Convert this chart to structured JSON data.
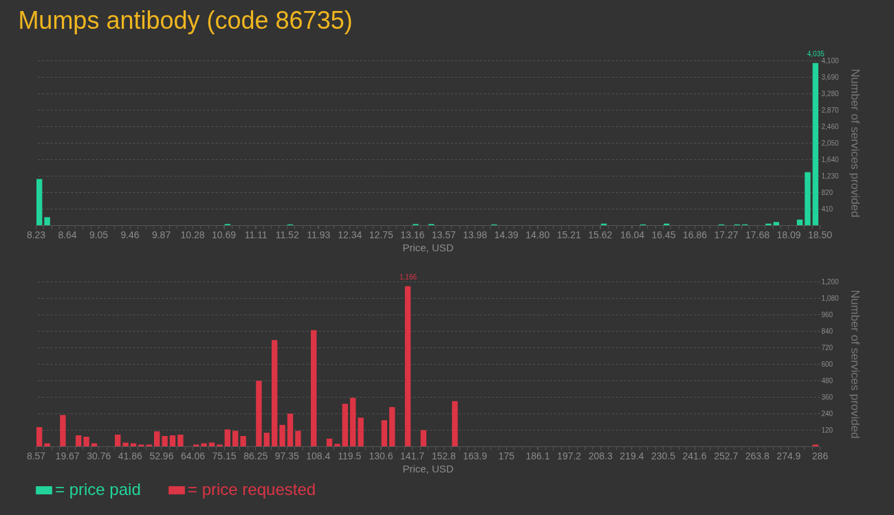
{
  "chart_data": [
    {
      "type": "histogram",
      "title": "Mumps antibody (code 86735)",
      "xlabel": "Price, USD",
      "ylabel": "Number of services provided",
      "legend": "bottom",
      "grid": "y",
      "bins": [
        8.23,
        8.3327,
        8.4354,
        8.5381,
        8.6408,
        8.7435,
        8.8462,
        8.9489,
        9.0516,
        9.1543,
        9.257,
        9.3597,
        9.4624,
        9.5651,
        9.6678,
        9.7705,
        9.8732,
        9.9759,
        10.0786,
        10.1813,
        10.284,
        10.3867,
        10.4894,
        10.5921,
        10.6948,
        10.7975,
        10.9002,
        11.0029,
        11.1056,
        11.2083,
        11.311,
        11.4137,
        11.5164,
        11.6191,
        11.7218,
        11.8245,
        11.9272,
        12.0299,
        12.1326,
        12.2353,
        12.338,
        12.4407,
        12.5434,
        12.6461,
        12.7488,
        12.8515,
        12.9542,
        13.0569,
        13.1596,
        13.2623,
        13.365,
        13.4677,
        13.5704,
        13.6731,
        13.7758,
        13.8785,
        13.9812,
        14.0839,
        14.1866,
        14.2893,
        14.392,
        14.4947,
        14.5974,
        14.7001,
        14.8028,
        14.9055,
        15.0082,
        15.1109,
        15.2136,
        15.3163,
        15.419,
        15.5217,
        15.6244,
        15.7271,
        15.8298,
        15.9325,
        16.0352,
        16.1379,
        16.2406,
        16.3433,
        16.446,
        16.5487,
        16.6514,
        16.7541,
        16.8568,
        16.9595,
        17.0622,
        17.1649,
        17.2676,
        17.3703,
        17.473,
        17.5757,
        17.6784,
        17.7811,
        17.8838,
        17.9865,
        18.0892,
        18.1919,
        18.2946,
        18.3973,
        18.5
      ],
      "xlim": [
        8.23,
        18.5
      ],
      "xticks": [
        8.23,
        8.64,
        9.05,
        9.46,
        9.87,
        10.28,
        10.69,
        11.11,
        11.52,
        11.93,
        12.34,
        12.75,
        13.16,
        13.57,
        13.98,
        14.39,
        {
          "value": 14.8,
          "label": "14.80"
        },
        15.21,
        15.62,
        16.04,
        16.45,
        16.86,
        17.27,
        17.68,
        18.09,
        {
          "value": 18.5,
          "label": "18.50"
        }
      ],
      "ylim": [
        0,
        4100
      ],
      "yticks": [
        {
          "value": 410,
          "label": "410"
        },
        {
          "value": 820,
          "label": "820"
        },
        {
          "value": 1230,
          "label": "1,230"
        },
        {
          "value": 1640,
          "label": "1,640"
        },
        {
          "value": 2050,
          "label": "2,050"
        },
        {
          "value": 2460,
          "label": "2,460"
        },
        {
          "value": 2870,
          "label": "2,870"
        },
        {
          "value": 3280,
          "label": "3,280"
        },
        {
          "value": 3690,
          "label": "3,690"
        },
        {
          "value": 4100,
          "label": "4,100"
        }
      ],
      "series": [
        {
          "name": "= price paid",
          "color": "#22d49b",
          "values": [
            1150,
            200,
            0,
            0,
            0,
            0,
            0,
            0,
            0,
            0,
            0,
            0,
            0,
            0,
            0,
            0,
            0,
            0,
            0,
            0,
            0,
            0,
            0,
            0,
            30,
            0,
            0,
            0,
            0,
            0,
            0,
            0,
            20,
            0,
            0,
            0,
            0,
            0,
            0,
            0,
            0,
            0,
            0,
            0,
            0,
            0,
            0,
            0,
            30,
            0,
            30,
            0,
            0,
            0,
            0,
            0,
            0,
            0,
            20,
            0,
            0,
            0,
            0,
            0,
            0,
            0,
            0,
            0,
            0,
            0,
            0,
            0,
            40,
            0,
            0,
            0,
            0,
            20,
            0,
            0,
            40,
            0,
            0,
            0,
            0,
            0,
            0,
            20,
            0,
            20,
            20,
            0,
            0,
            40,
            80,
            0,
            0,
            140,
            1320,
            4035
          ],
          "value_labels": [
            null,
            null,
            null,
            null,
            null,
            null,
            null,
            null,
            null,
            null,
            null,
            null,
            null,
            null,
            null,
            null,
            null,
            null,
            null,
            null,
            null,
            null,
            null,
            null,
            null,
            null,
            null,
            null,
            null,
            null,
            null,
            null,
            null,
            null,
            null,
            null,
            null,
            null,
            null,
            null,
            null,
            null,
            null,
            null,
            null,
            null,
            null,
            null,
            null,
            null,
            null,
            null,
            null,
            null,
            null,
            null,
            null,
            null,
            null,
            null,
            null,
            null,
            null,
            null,
            null,
            null,
            null,
            null,
            null,
            null,
            null,
            null,
            null,
            null,
            null,
            null,
            null,
            null,
            null,
            null,
            null,
            null,
            null,
            null,
            null,
            null,
            null,
            null,
            null,
            null,
            null,
            null,
            null,
            null,
            null,
            null,
            null,
            null,
            null,
            "4,035"
          ]
        }
      ]
    },
    {
      "type": "histogram",
      "xlabel": "Price, USD",
      "ylabel": "Number of services provided",
      "legend": "bottom",
      "grid": "y",
      "bins": [
        8.57,
        11.3443,
        14.1186,
        16.8929,
        19.6672,
        22.4415,
        25.2158,
        27.9901,
        30.7644,
        33.5387,
        36.313,
        39.0873,
        41.8616,
        44.6359,
        47.4102,
        50.1845,
        52.9588,
        55.7331,
        58.5074,
        61.2817,
        64.056,
        66.8303,
        69.6046,
        72.3789,
        75.1532,
        77.9275,
        80.7018,
        83.4761,
        86.2504,
        89.0247,
        91.799,
        94.5733,
        97.3476,
        100.1219,
        102.8962,
        105.6705,
        108.4448,
        111.2191,
        113.9934,
        116.7677,
        119.542,
        122.3163,
        125.0906,
        127.8649,
        130.6392,
        133.4135,
        136.1878,
        138.9621,
        141.7364,
        144.5107,
        147.285,
        150.0593,
        152.8336,
        155.6079,
        158.3822,
        161.1565,
        163.9308,
        166.7051,
        169.4794,
        172.2537,
        175.028,
        177.8023,
        180.5766,
        183.3509,
        186.1252,
        188.8995,
        191.6738,
        194.4481,
        197.2224,
        199.9967,
        202.771,
        205.5453,
        208.3196,
        211.0939,
        213.8682,
        216.6425,
        219.4168,
        222.1911,
        224.9654,
        227.7397,
        230.514,
        233.2883,
        236.0626,
        238.8369,
        241.6112,
        244.3855,
        247.1598,
        249.9341,
        252.7084,
        255.4827,
        258.257,
        261.0313,
        263.8056,
        266.5799,
        269.3542,
        272.1285,
        274.9028,
        277.6771,
        280.4514,
        283.2257,
        286
      ],
      "xlim": [
        8.57,
        286
      ],
      "xticks": [
        8.57,
        19.67,
        30.76,
        41.86,
        52.96,
        64.06,
        75.15,
        86.25,
        97.35,
        108.4,
        119.5,
        130.6,
        141.7,
        152.8,
        163.9,
        175,
        186.1,
        197.2,
        208.3,
        219.4,
        230.5,
        241.6,
        252.7,
        263.8,
        274.9,
        286
      ],
      "ylim": [
        0,
        1200
      ],
      "yticks": [
        120,
        240,
        360,
        480,
        600,
        720,
        840,
        960,
        {
          "value": 1080,
          "label": "1,080"
        },
        {
          "value": 1200,
          "label": "1,200"
        }
      ],
      "series": [
        {
          "name": "= price requested",
          "color": "#dc3545",
          "values": [
            140,
            22,
            0,
            228,
            0,
            80,
            70,
            22,
            0,
            0,
            85,
            27,
            22,
            13,
            13,
            109,
            75,
            80,
            85,
            0,
            13,
            22,
            27,
            13,
            123,
            113,
            75,
            0,
            477,
            99,
            774,
            156,
            238,
            113,
            0,
            846,
            0,
            56,
            18,
            310,
            353,
            209,
            0,
            0,
            190,
            286,
            0,
            1166,
            0,
            118,
            0,
            0,
            0,
            329,
            0,
            0,
            0,
            0,
            0,
            0,
            0,
            0,
            0,
            0,
            0,
            0,
            0,
            0,
            0,
            0,
            0,
            0,
            0,
            0,
            0,
            0,
            0,
            0,
            0,
            0,
            0,
            0,
            0,
            0,
            0,
            0,
            0,
            0,
            0,
            0,
            0,
            0,
            0,
            0,
            0,
            0,
            0,
            0,
            0,
            13
          ],
          "value_labels": [
            null,
            null,
            null,
            null,
            null,
            null,
            null,
            null,
            null,
            null,
            null,
            null,
            null,
            null,
            null,
            null,
            null,
            null,
            null,
            null,
            null,
            null,
            null,
            null,
            null,
            null,
            null,
            null,
            null,
            null,
            null,
            null,
            null,
            null,
            null,
            null,
            null,
            null,
            null,
            null,
            null,
            null,
            null,
            null,
            null,
            null,
            null,
            "1,166",
            null,
            null,
            null,
            null,
            null,
            null,
            null,
            null,
            null,
            null,
            null,
            null,
            null,
            null,
            null,
            null,
            null,
            null,
            null,
            null,
            null,
            null,
            null,
            null,
            null,
            null,
            null,
            null,
            null,
            null,
            null,
            null,
            null,
            null,
            null,
            null,
            null,
            null,
            null,
            null,
            null,
            null,
            null,
            null,
            null,
            null,
            null,
            null,
            null,
            null,
            null,
            null
          ]
        }
      ]
    }
  ]
}
